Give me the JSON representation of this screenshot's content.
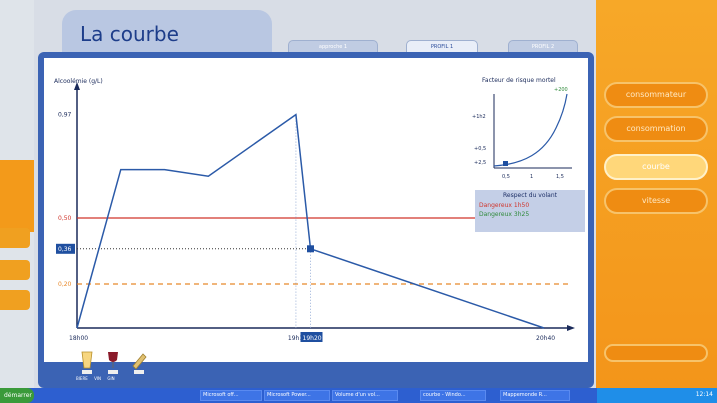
{
  "app": {
    "title": "La courbe"
  },
  "tabs": [
    {
      "label": "approche 1",
      "active": false
    },
    {
      "label": "PROFIL 1",
      "active": true
    },
    {
      "label": "PROFIL 2",
      "active": false
    }
  ],
  "right_menu": [
    {
      "label": "consommateur",
      "active": false
    },
    {
      "label": "consommation",
      "active": false
    },
    {
      "label": "courbe",
      "active": true
    },
    {
      "label": "vitesse",
      "active": false
    },
    {
      "label": "",
      "active": false
    }
  ],
  "left_strip": {
    "items": [
      "",
      "",
      ""
    ]
  },
  "legend": {
    "title": "Respect du volant",
    "item1": "Dangereux 1h50",
    "item2": "Dangereux 3h25",
    "red_color": "#d0352b",
    "green_color": "#2f8a3a"
  },
  "mini_chart": {
    "title": "Facteur de risque mortel",
    "label_top": "+200",
    "y_labels": [
      "+1h2",
      "+0,5",
      "+2,5"
    ],
    "x_labels": [
      "0,5",
      "1",
      "1,5"
    ]
  },
  "colors": {
    "frame": "#3b63b4",
    "curve": "#2b5aa8",
    "threshold_red": "#d0352b",
    "threshold_orange": "#e8892a",
    "accent_orange": "#f39a1a"
  },
  "drinks": [
    {
      "icon": "beer-glass-icon",
      "label": "BIERE"
    },
    {
      "icon": "wine-glass-icon",
      "label": "VIN"
    },
    {
      "icon": "bottle-icon",
      "label": "GIN"
    }
  ],
  "taskbar": {
    "start": "démarrer",
    "items": [
      "Microsoft off...",
      "Microsoft Power...",
      "Volume d'un vol...",
      "courbe - Windo...",
      "Mappemonde R..."
    ],
    "clock": "12:14"
  },
  "chart_data": {
    "type": "line",
    "ylabel": "Alcoolémie (g/L)",
    "xlabel": "",
    "x_ticks": [
      "18h00",
      "19h15",
      "19h20",
      "20h40"
    ],
    "y_ticks": [
      {
        "label": "0,97",
        "value": 0.97
      },
      {
        "label": "0,50",
        "value": 0.5
      },
      {
        "label": "0,36",
        "value": 0.36
      },
      {
        "label": "0,20",
        "value": 0.2
      }
    ],
    "series": [
      {
        "values": [
          {
            "x": "18h00",
            "y": 0.0
          },
          {
            "x": "18h15",
            "y": 0.72
          },
          {
            "x": "18h20",
            "y": 0.72
          },
          {
            "x": "18h30",
            "y": 0.72
          },
          {
            "x": "18h45",
            "y": 0.69
          },
          {
            "x": "19h15",
            "y": 0.97
          },
          {
            "x": "19h20",
            "y": 0.36
          },
          {
            "x": "20h40",
            "y": 0.0
          }
        ]
      }
    ],
    "thresholds": [
      {
        "value": 0.5,
        "color": "#d0352b",
        "style": "solid"
      },
      {
        "value": 0.2,
        "color": "#e8892a",
        "style": "dashed"
      }
    ],
    "marker": {
      "x": "19h20",
      "y": 0.36
    },
    "ylim": [
      0,
      1.0
    ]
  }
}
